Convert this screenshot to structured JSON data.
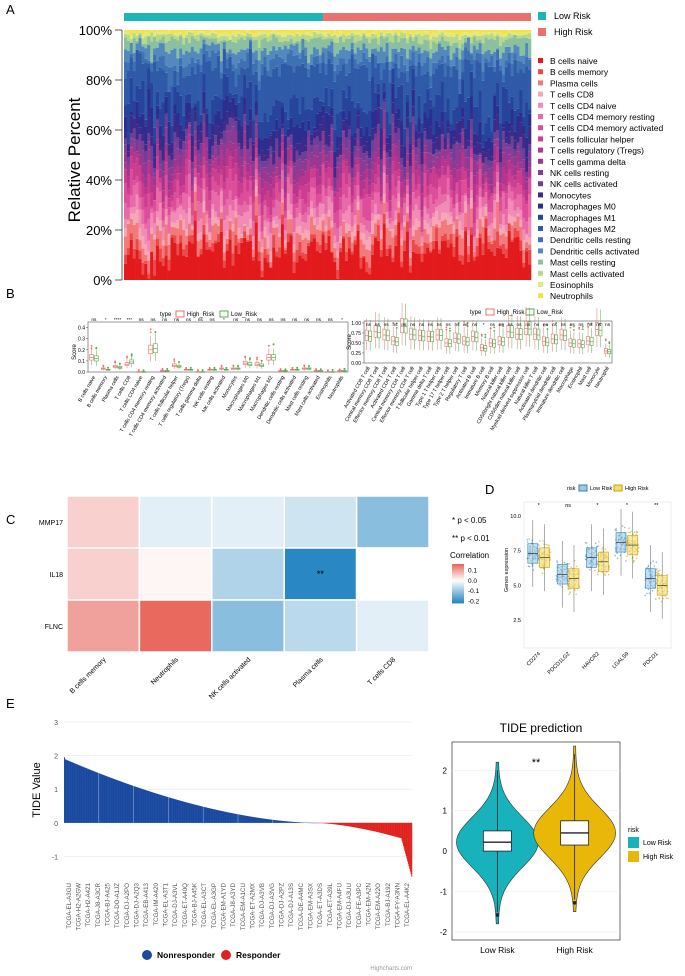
{
  "panel_letters": {
    "a": "A",
    "b": "B",
    "c": "C",
    "d": "D",
    "e": "E"
  },
  "colors": {
    "low_risk": "#1cb5b8",
    "high_risk": "#e8726e",
    "red_low": "#2c7bb6",
    "red_high": "#d7191c",
    "nonresponder": "#1a49a0",
    "responder": "#e0231f",
    "violin_low": "#18b2bd",
    "violin_high": "#e8b708"
  },
  "chart_data": [
    {
      "id": "A",
      "type": "area",
      "title": "",
      "ylabel": "Relative Percent",
      "yticks": [
        "0%",
        "20%",
        "40%",
        "60%",
        "80%",
        "100%"
      ],
      "ylim": [
        0,
        100
      ],
      "group_bar": [
        {
          "name": "Low Risk",
          "color": "#1cb5b8"
        },
        {
          "name": "High Risk",
          "color": "#e8726e"
        }
      ],
      "legend": [
        {
          "name": "B cells naive",
          "color": "#e31a1c"
        },
        {
          "name": "B cells memory",
          "color": "#ec4a4a"
        },
        {
          "name": "Plasma cells",
          "color": "#f27a7a"
        },
        {
          "name": "T cells CD8",
          "color": "#f6a7b5"
        },
        {
          "name": "T cells CD4 naive",
          "color": "#f08cb6"
        },
        {
          "name": "T cells CD4 memory resting",
          "color": "#e86aa8"
        },
        {
          "name": "T cells CD4 memory activated",
          "color": "#dd4e9a"
        },
        {
          "name": "T cells follicular helper",
          "color": "#cc3d90"
        },
        {
          "name": "T cells regulatory (Tregs)",
          "color": "#b7358d"
        },
        {
          "name": "T cells gamma delta",
          "color": "#9e3690"
        },
        {
          "name": "NK cells resting",
          "color": "#8a3c95"
        },
        {
          "name": "NK cells activated",
          "color": "#6f3f97"
        },
        {
          "name": "Monocytes",
          "color": "#3f2a8a"
        },
        {
          "name": "Macrophages M0",
          "color": "#2b2e8f"
        },
        {
          "name": "Macrophages M1",
          "color": "#26449c"
        },
        {
          "name": "Macrophages M2",
          "color": "#2f5aa8"
        },
        {
          "name": "Dendritic cells resting",
          "color": "#3e71b3"
        },
        {
          "name": "Dendritic cells activated",
          "color": "#5489be"
        },
        {
          "name": "Mast cells resting",
          "color": "#8bc0a0"
        },
        {
          "name": "Mast cells activated",
          "color": "#b8d98a"
        },
        {
          "name": "Eosinophils",
          "color": "#e3e880"
        },
        {
          "name": "Neutrophils",
          "color": "#f5e33a"
        }
      ],
      "mean_fractions": [
        0.12,
        0.03,
        0.05,
        0.03,
        0.04,
        0.05,
        0.05,
        0.04,
        0.04,
        0.03,
        0.04,
        0.03,
        0.04,
        0.05,
        0.08,
        0.14,
        0.04,
        0.04,
        0.04,
        0.02,
        0.01,
        0.01
      ]
    },
    {
      "id": "B-left",
      "type": "box",
      "legend_title": "type",
      "legend": [
        "High_Risk",
        "Low_Risk"
      ],
      "ylabel": "Score",
      "yticks": [
        "0.0",
        "0.1",
        "0.2",
        "0.3",
        "0.4"
      ],
      "ylim": [
        0,
        0.45
      ],
      "categories": [
        "B cells naive",
        "B cells memory",
        "Plasma cells",
        "T cells CD8",
        "T cells CD4 naive",
        "T cells CD4 memory resting",
        "T cells CD4 memory activated",
        "T cells follicular helper",
        "T cells regulatory (Tregs)",
        "T cells gamma delta",
        "NK cells resting",
        "NK cells activated",
        "Monocytes",
        "Macrophages M0",
        "Macrophages M1",
        "Macrophages M2",
        "Dendritic cells resting",
        "Dendritic cells activated",
        "Mast cells resting",
        "Mast cells activated",
        "Eosinophils",
        "Neutrophils"
      ],
      "significance": [
        "ns",
        "*",
        "****",
        "***",
        "ns",
        "ns",
        "ns",
        "ns",
        "ns",
        "ns",
        "ns",
        "*",
        "ns",
        "ns",
        "ns",
        "ns",
        "ns",
        "ns",
        "ns",
        "ns",
        "ns",
        "*"
      ],
      "medians_high": [
        0.13,
        0.03,
        0.05,
        0.07,
        0.0,
        0.2,
        0.01,
        0.06,
        0.02,
        0.0,
        0.02,
        0.03,
        0.03,
        0.08,
        0.07,
        0.13,
        0.01,
        0.02,
        0.03,
        0.01,
        0.0,
        0.01
      ],
      "medians_low": [
        0.12,
        0.02,
        0.04,
        0.09,
        0.0,
        0.21,
        0.01,
        0.05,
        0.02,
        0.0,
        0.02,
        0.02,
        0.03,
        0.07,
        0.06,
        0.13,
        0.01,
        0.02,
        0.03,
        0.01,
        0.0,
        0.01
      ]
    },
    {
      "id": "B-right",
      "type": "box",
      "legend_title": "type",
      "legend": [
        "High_Risk",
        "Low_Risk"
      ],
      "ylabel": "Score",
      "yticks": [
        "0.00",
        "0.25",
        "0.50",
        "0.75",
        "1.00"
      ],
      "ylim": [
        0,
        1.05
      ],
      "categories": [
        "Activated CD8 T cell",
        "Central memory CD8 T cell",
        "Effector memory CD8 T cell",
        "Activated CD4 T cell",
        "Central memory CD4 T cell",
        "Effector memory CD4 T cell",
        "T follicular helper cell",
        "Gamma delta T cell",
        "Type 1 T helper cell",
        "Type 17 T helper cell",
        "Type 2 T helper cell",
        "Regulatory T cell",
        "Activated B cell",
        "Immature B cell",
        "Memory B cell",
        "Natural killer cell",
        "CD56bright natural killer cell",
        "CD56dim natural killer cell",
        "Myeloid derived suppressor cell",
        "Natural killer T cell",
        "Activated dendritic cell",
        "Plasmacytoid dendritic cell",
        "Immature dendritic cell",
        "Macrophage",
        "Eosinophil",
        "Mast cell",
        "Monocyte",
        "Neutrophil"
      ],
      "significance": [
        "ns",
        "ns",
        "ns",
        "ns",
        "ns",
        "ns",
        "ns",
        "ns",
        "ns",
        "ns",
        "ns",
        "ns",
        "ns",
        "*",
        "ns",
        "ns",
        "ns",
        "ns",
        "ns",
        "ns",
        "ns",
        "ns",
        "ns",
        "ns",
        "ns",
        "ns",
        "ns",
        "ns"
      ],
      "medians_high": [
        0.68,
        0.78,
        0.7,
        0.55,
        0.92,
        0.72,
        0.68,
        0.66,
        0.7,
        0.5,
        0.62,
        0.55,
        0.66,
        0.38,
        0.5,
        0.55,
        0.78,
        0.72,
        0.86,
        0.72,
        0.54,
        0.6,
        0.7,
        0.5,
        0.48,
        0.55,
        0.84,
        0.3
      ],
      "medians_low": [
        0.66,
        0.76,
        0.68,
        0.53,
        0.91,
        0.7,
        0.67,
        0.65,
        0.69,
        0.49,
        0.6,
        0.53,
        0.64,
        0.36,
        0.48,
        0.53,
        0.77,
        0.71,
        0.85,
        0.7,
        0.52,
        0.58,
        0.68,
        0.48,
        0.46,
        0.53,
        0.82,
        0.28
      ]
    },
    {
      "id": "C",
      "type": "heatmap",
      "rows": [
        "MMP17",
        "IL18",
        "FLNC"
      ],
      "columns": [
        "B cells memory",
        "Neutrophils",
        "NK cells activated",
        "Plasma cells",
        "T cells CD8"
      ],
      "values": [
        [
          0.05,
          -0.03,
          -0.03,
          -0.05,
          -0.12
        ],
        [
          0.05,
          0.01,
          -0.08,
          -0.22,
          0.0
        ],
        [
          0.1,
          0.16,
          -0.12,
          -0.07,
          -0.03
        ]
      ],
      "annotations": [
        [
          "",
          "",
          "",
          "",
          ""
        ],
        [
          "",
          "",
          "",
          "**",
          ""
        ],
        [
          "",
          "",
          "",
          "",
          ""
        ]
      ],
      "legend_title": "Correlation",
      "legend_ticks": [
        "0.1",
        "0.0",
        "-0.1",
        "-0.2"
      ],
      "legend_range": [
        -0.22,
        0.16
      ],
      "sig_notes": [
        "* p < 0.05",
        "** p < 0.01"
      ]
    },
    {
      "id": "D",
      "type": "box",
      "legend_title": "risk",
      "legend": [
        "Low Risk",
        "High Risk"
      ],
      "ylabel": "Genes expression",
      "yticks": [
        "2.5",
        "5.0",
        "7.5",
        "10.0"
      ],
      "ylim": [
        0.5,
        11
      ],
      "categories": [
        "CD274",
        "PDCD1LG2",
        "HAVCR2",
        "LGALS9",
        "PDCD1"
      ],
      "significance": [
        "*",
        "ns",
        "*",
        "*",
        "**"
      ],
      "medians_low": [
        7.3,
        5.8,
        7.0,
        8.1,
        5.5
      ],
      "medians_high": [
        7.0,
        5.5,
        6.7,
        7.9,
        5.0
      ]
    },
    {
      "id": "E-left",
      "type": "bar",
      "ylabel": "TIDE Value",
      "yticks": [
        "3",
        "2",
        "1",
        "0",
        "-1"
      ],
      "ylim": [
        -1.7,
        3
      ],
      "categories": [
        "TCGA-EL-A3GU",
        "TCGA-H2-A2GW",
        "TCGA-H2-A421",
        "TCGA-J8-A3CR",
        "TCGA-BJ-A425",
        "TCGA-DO-A1JZ",
        "TCGA-DJ-A2PO",
        "TCGA-DJ-A2Q3",
        "TCGA-EB-A413",
        "TCGA-IM-A420",
        "TCGA-EL-A3T1",
        "TCGA-DJ-A3VL",
        "TCGA-ET-A40Q",
        "TCGA-BJ-A45K",
        "TCGA-EL-A3CT",
        "TCGA-EL-A3GP",
        "TCGA-EM-A1YD",
        "TCGA-J8-A3YD",
        "TCGA-EM-A1CU",
        "TCGA-ET-A2MX",
        "TCGA-DJ-A3VB",
        "TCGA-DJ-A3VG",
        "TCGA-DJ-A2PZ",
        "TCGA-DJ-A13S",
        "TCGA-DE-A4MC",
        "TCGA-EM-A3SX",
        "TCGA-ET-A3DS",
        "TCGA-ET-A39L",
        "TCGA-EM-A4FU",
        "TCGA-DJ-A3UU",
        "TCGA-FE-A3PC",
        "TCGA-EM-A2N",
        "TCGA-EM-A22O",
        "TCGA-BJ-A192",
        "TCGA-FY-A3NN",
        "TCGA-EL-A4K2"
      ],
      "legend": [
        {
          "name": "Nonresponder",
          "color": "#1a49a0"
        },
        {
          "name": "Responder",
          "color": "#e0231f"
        }
      ],
      "n_bars": 500,
      "max_value": 2.0,
      "min_value": -1.6,
      "credits": "Highcharts.com"
    },
    {
      "id": "E-right",
      "type": "violin",
      "title": "TIDE prediction",
      "categories": [
        "Low Risk",
        "High Risk"
      ],
      "yticks": [
        "2",
        "1",
        "0",
        "-1",
        "-2"
      ],
      "ylim": [
        -2.2,
        2.7
      ],
      "medians": [
        0.22,
        0.45
      ],
      "q1": [
        0.0,
        0.15
      ],
      "q3": [
        0.5,
        0.75
      ],
      "whisker_low": [
        -1.5,
        -1.2
      ],
      "whisker_high": [
        2.0,
        2.4
      ],
      "annotation": "**",
      "legend_title": "risk",
      "legend": [
        "Low Risk",
        "High Risk"
      ]
    }
  ]
}
